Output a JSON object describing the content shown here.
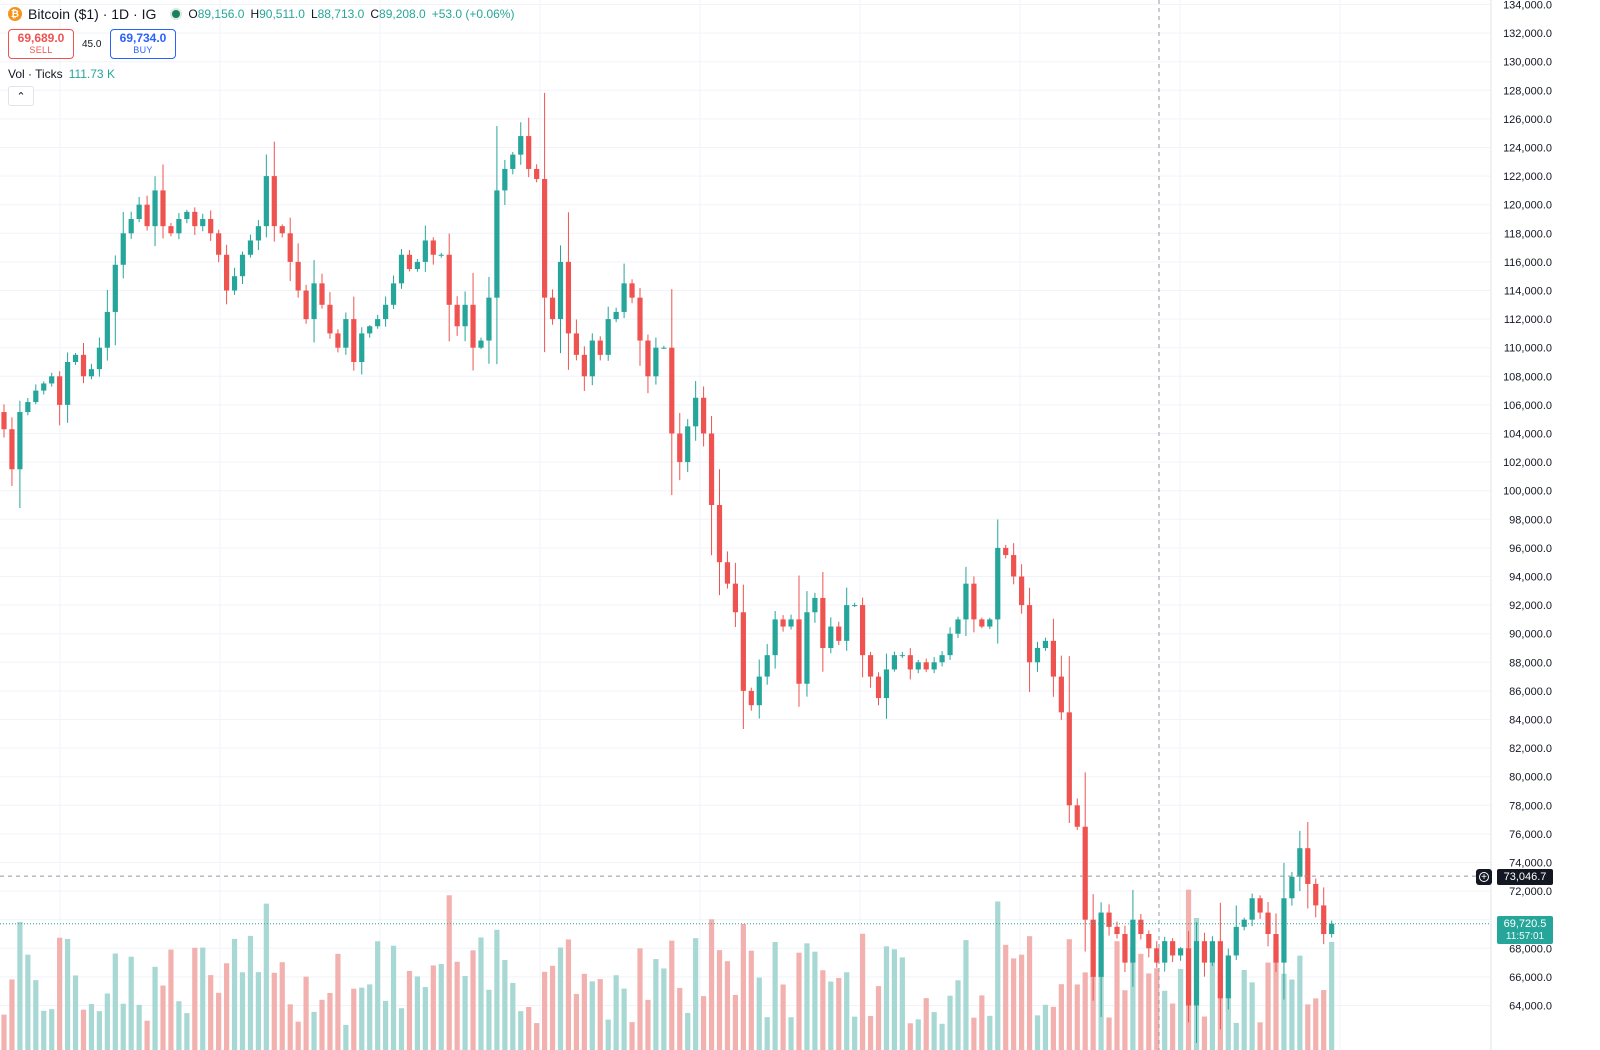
{
  "header": {
    "symbol_icon": "bitcoin-icon",
    "title": "Bitcoin ($1) · 1D · IG",
    "open_label": "O",
    "open": "89,156.0",
    "high_label": "H",
    "high": "90,511.0",
    "low_label": "L",
    "low": "88,713.0",
    "close_label": "C",
    "close": "89,208.0",
    "change": "+53.0 (+0.06%)"
  },
  "trade": {
    "sell_price": "69,689.0",
    "sell_label": "SELL",
    "spread": "45.0",
    "buy_price": "69,734.0",
    "buy_label": "BUY"
  },
  "volume_legend": {
    "label": "Vol · Ticks",
    "value": "111.73 K"
  },
  "price_axis": {
    "crosshair_price": "73,046.7",
    "last_price": "69,720.5",
    "countdown": "11:57:01"
  },
  "colors": {
    "up": "#26a69a",
    "down": "#ef5350",
    "up_vol": "#a8d8d3",
    "down_vol": "#f2b1ae",
    "grid": "#f0f3fa"
  },
  "chart_data": {
    "type": "candlestick",
    "interval": "1D",
    "y_ticks": [
      64000,
      66000,
      68000,
      70000,
      72000,
      74000,
      76000,
      78000,
      80000,
      82000,
      84000,
      86000,
      88000,
      90000,
      92000,
      94000,
      96000,
      98000,
      100000,
      102000,
      104000,
      106000,
      108000,
      110000,
      112000,
      114000,
      116000,
      118000,
      120000,
      122000,
      124000,
      126000,
      128000,
      130000,
      132000,
      134000
    ],
    "y_tick_labels": [
      "64,000.0",
      "66,000.0",
      "68,000.0",
      "70,000.0",
      "72,000.0",
      "74,000.0",
      "76,000.0",
      "78,000.0",
      "80,000.0",
      "82,000.0",
      "84,000.0",
      "86,000.0",
      "88,000.0",
      "90,000.0",
      "92,000.0",
      "94,000.0",
      "96,000.0",
      "98,000.0",
      "100,000.0",
      "102,000.0",
      "104,000.0",
      "106,000.0",
      "108,000.0",
      "110,000.0",
      "112,000.0",
      "114,000.0",
      "116,000.0",
      "118,000.0",
      "120,000.0",
      "122,000.0",
      "124,000.0",
      "126,000.0",
      "128,000.0",
      "130,000.0",
      "132,000.0",
      "134,000.0"
    ],
    "closes": [
      104300,
      101500,
      105500,
      106200,
      107000,
      107500,
      108000,
      106000,
      109000,
      109500,
      108000,
      108500,
      110000,
      112500,
      115800,
      118000,
      119000,
      120000,
      118500,
      121000,
      118500,
      118000,
      119000,
      119500,
      118500,
      119000,
      118000,
      116500,
      114000,
      115000,
      116500,
      117500,
      118500,
      122000,
      118500,
      118000,
      116000,
      114000,
      112000,
      114500,
      113000,
      111000,
      110000,
      112000,
      109000,
      111000,
      111500,
      112000,
      113000,
      114500,
      116500,
      115500,
      116000,
      117500,
      116500,
      116500,
      113000,
      111500,
      113000,
      110000,
      110500,
      113500,
      121000,
      122500,
      123500,
      124800,
      122500,
      121800,
      113500,
      112000,
      116000,
      111000,
      109500,
      108000,
      110500,
      109500,
      112000,
      112500,
      114500,
      113500,
      110500,
      108000,
      110000,
      110000,
      104000,
      102000,
      104500,
      106500,
      104000,
      99000,
      95000,
      93500,
      91500,
      86000,
      85000,
      87000,
      88500,
      91000,
      90500,
      91000,
      86500,
      91500,
      92500,
      89000,
      90500,
      89500,
      92000,
      92000,
      88500,
      87000,
      85500,
      87500,
      88500,
      88500,
      87500,
      88000,
      87500,
      88000,
      88500,
      90000,
      91000,
      93500,
      91000,
      90500,
      91000,
      96000,
      95500,
      94000,
      92000,
      88000,
      89000,
      89500,
      87000,
      84500,
      78000,
      76500,
      70000,
      66000,
      70500,
      69500,
      69000,
      67000,
      70000,
      69000,
      68000,
      67000,
      68500,
      67500,
      68000,
      64000,
      68500,
      67000,
      68500,
      64500,
      67500,
      69500,
      70000,
      71500,
      70500,
      69000,
      67000,
      71500,
      73000,
      75000,
      72500,
      71000,
      69000,
      69720
    ],
    "volume_series": "Vol · Ticks"
  }
}
